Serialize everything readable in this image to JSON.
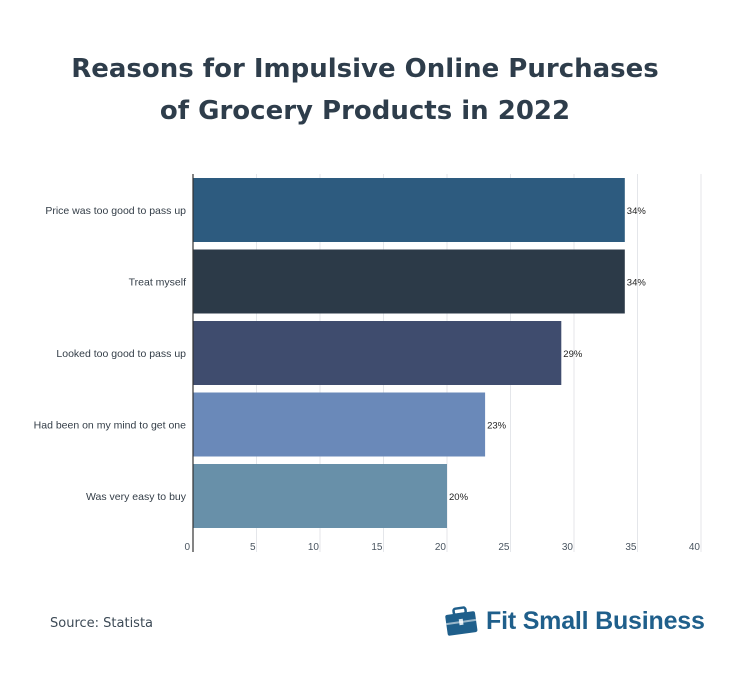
{
  "page": {
    "title_lines": [
      "Reasons for Impulsive Online Purchases",
      "of Grocery Products in 2022"
    ],
    "source": "Source: Statista",
    "brand": "Fit Small Business",
    "logo_icon": "briefcase-icon"
  },
  "chart_data": {
    "type": "bar",
    "orientation": "horizontal",
    "title": "Reasons for Impulsive Online Purchases of Grocery Products in 2022",
    "categories": [
      "Price was too good to pass up",
      "Treat myself",
      "Looked too good to pass up",
      "Had been on my mind to get one",
      "Was very easy to buy"
    ],
    "values": [
      34,
      34,
      29,
      23,
      20
    ],
    "value_labels": [
      "34%",
      "34%",
      "29%",
      "23%",
      "20%"
    ],
    "colors": [
      "#2d5b7f",
      "#2c3a48",
      "#3f4c6e",
      "#6a89b9",
      "#6890a9"
    ],
    "xlim": [
      0,
      40
    ],
    "xticks": [
      0,
      5,
      10,
      15,
      20,
      25,
      30,
      35,
      40
    ],
    "grid": true,
    "xlabel": "",
    "ylabel": ""
  }
}
